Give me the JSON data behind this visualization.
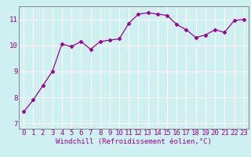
{
  "x": [
    0,
    1,
    2,
    3,
    4,
    5,
    6,
    7,
    8,
    9,
    10,
    11,
    12,
    13,
    14,
    15,
    16,
    17,
    18,
    19,
    20,
    21,
    22,
    23
  ],
  "y": [
    7.45,
    7.9,
    8.45,
    9.0,
    10.05,
    9.95,
    10.15,
    9.85,
    10.15,
    10.2,
    10.25,
    10.85,
    11.2,
    11.25,
    11.2,
    11.15,
    10.8,
    10.6,
    10.3,
    10.4,
    10.6,
    10.5,
    10.95,
    11.0
  ],
  "line_color": "#990099",
  "marker_color": "#990099",
  "bg_color": "#cff0f0",
  "grid_color": "#ffffff",
  "xlabel": "Windchill (Refroidissement éolien,°C)",
  "xlim": [
    -0.5,
    23.5
  ],
  "ylim": [
    6.8,
    11.5
  ],
  "yticks": [
    7,
    8,
    9,
    10,
    11
  ],
  "xticks": [
    0,
    1,
    2,
    3,
    4,
    5,
    6,
    7,
    8,
    9,
    10,
    11,
    12,
    13,
    14,
    15,
    16,
    17,
    18,
    19,
    20,
    21,
    22,
    23
  ],
  "label_fontsize": 6.5,
  "tick_fontsize": 6.5,
  "title_color": "#990099"
}
